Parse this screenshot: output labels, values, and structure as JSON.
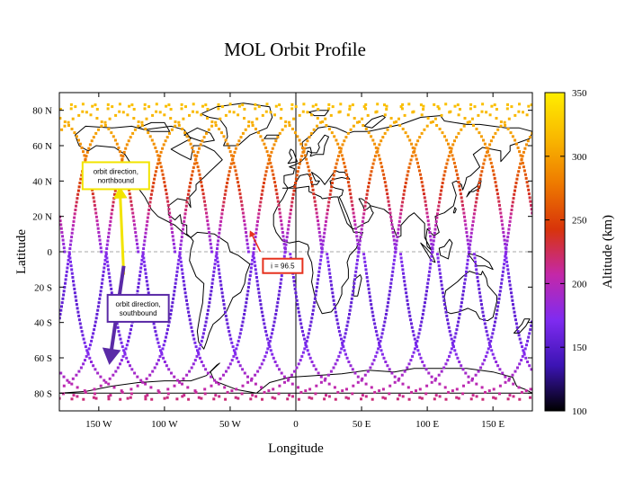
{
  "chart_data": {
    "type": "scatter",
    "title": "MOL Orbit Profile",
    "xlabel": "Longitude",
    "ylabel": "Latitude",
    "xlim": [
      -180,
      180
    ],
    "ylim": [
      -90,
      90
    ],
    "x_ticks": [
      {
        "value": -150,
        "label": "150 W"
      },
      {
        "value": -100,
        "label": "100 W"
      },
      {
        "value": -50,
        "label": "50 W"
      },
      {
        "value": 0,
        "label": "0"
      },
      {
        "value": 50,
        "label": "50 E"
      },
      {
        "value": 100,
        "label": "100 E"
      },
      {
        "value": 150,
        "label": "150 E"
      }
    ],
    "y_ticks": [
      {
        "value": 80,
        "label": "80 N"
      },
      {
        "value": 60,
        "label": "60 N"
      },
      {
        "value": 40,
        "label": "40 N"
      },
      {
        "value": 20,
        "label": "20 N"
      },
      {
        "value": 0,
        "label": "0"
      },
      {
        "value": -20,
        "label": "20 S"
      },
      {
        "value": -40,
        "label": "40 S"
      },
      {
        "value": -60,
        "label": "60 S"
      },
      {
        "value": -80,
        "label": "80 S"
      }
    ],
    "colorbar": {
      "label": "Altitude (km)",
      "range": [
        100,
        350
      ],
      "ticks": [
        100,
        150,
        200,
        250,
        300,
        350
      ],
      "colormap": [
        "#000000",
        "#3c14b4",
        "#7f2bf0",
        "#c428a8",
        "#d8340a",
        "#ee7a00",
        "#f9b800",
        "#ffee00"
      ]
    },
    "orbit": {
      "inclination_deg": 96.5,
      "perigee_lat": -30,
      "altitude_min_km": 155,
      "altitude_max_km": 325,
      "ascending_node_longitudes": [
        -176,
        -148,
        -120,
        -92,
        -64,
        -36,
        -8,
        20,
        48,
        76,
        104,
        132,
        160
      ],
      "marker_spacing_deg": 2.2
    },
    "annotations": [
      {
        "text": "orbit direction, northbound",
        "color": "#f2e400",
        "at": [
          -137,
          43
        ],
        "arrow_from": [
          -131,
          -13
        ],
        "arrow_to": [
          -134,
          37
        ]
      },
      {
        "text": "orbit direction, southbound",
        "color": "#5a2aa6",
        "at": [
          -120,
          -32
        ],
        "arrow_from": [
          -131,
          -8
        ],
        "arrow_to": [
          -142,
          -64
        ]
      },
      {
        "text": "i = 96.5",
        "color": "#e6321e",
        "at": [
          -10,
          -8
        ],
        "arrow_from": [
          -27,
          0
        ],
        "arrow_to": [
          -35,
          12
        ]
      }
    ],
    "grid": false,
    "reference_lines": [
      "latitude 0",
      "longitude 0"
    ]
  }
}
